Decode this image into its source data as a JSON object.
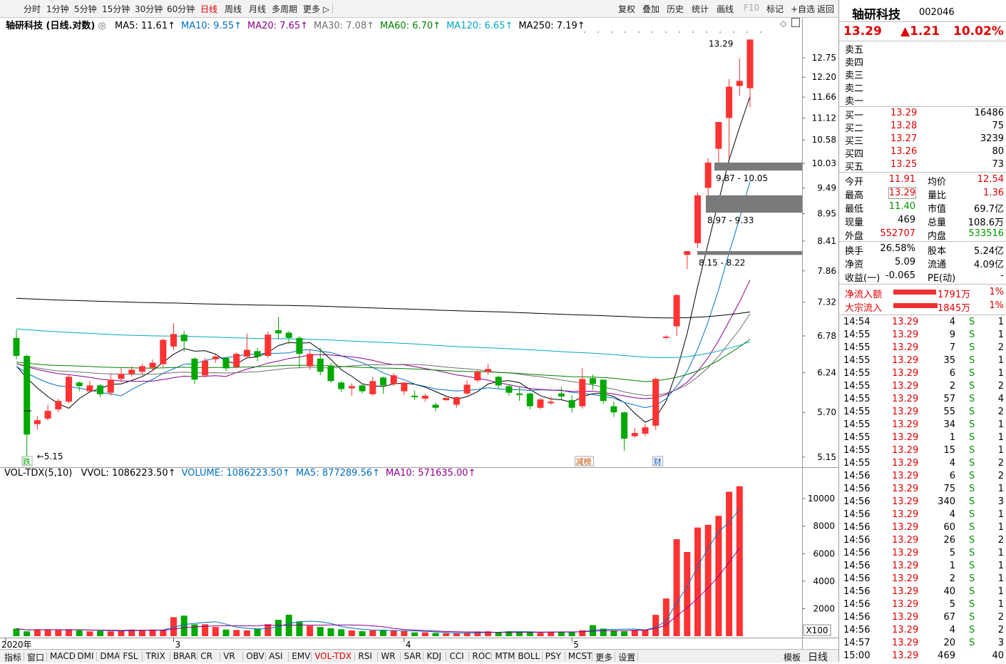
{
  "toolbar": {
    "periods": [
      "分时",
      "1分钟",
      "5分钟",
      "15分钟",
      "30分钟",
      "60分钟",
      "日线",
      "周线",
      "月线",
      "多周期",
      "更多 ▷"
    ],
    "active_period": "日线",
    "actions": [
      "复权",
      "叠加",
      "历史",
      "统计",
      "画线",
      "F10",
      "标记",
      "+自选",
      "返回"
    ]
  },
  "legend": {
    "title": "轴研科技 (日线.对数)",
    "items": [
      {
        "label": "MA5: 11.61↑",
        "color": "#000000"
      },
      {
        "label": "MA10: 9.55↑",
        "color": "#0070c0"
      },
      {
        "label": "MA20: 7.65↑",
        "color": "#8b008b"
      },
      {
        "label": "MA30: 7.08↑",
        "color": "#707070"
      },
      {
        "label": "MA60: 6.70↑",
        "color": "#008000"
      },
      {
        "label": "MA120: 6.65↑",
        "color": "#00a8c0"
      },
      {
        "label": "MA250: 7.19↑",
        "color": "#000000"
      }
    ]
  },
  "volume_legend": {
    "title": "VOL-TDX(5,10)",
    "items": [
      {
        "label": "VVOL: 1086223.50↑",
        "color": "#000000"
      },
      {
        "label": "VOLUME: 1086223.50↑",
        "color": "#0070c0"
      },
      {
        "label": "MA5: 877289.56↑",
        "color": "#0070c0"
      },
      {
        "label": "MA10: 571635.00↑",
        "color": "#8b008b"
      }
    ]
  },
  "annotations": {
    "high_label": "13.29",
    "low_label": "5.15",
    "gaps": [
      {
        "label": "9.87 - 10.05",
        "low": 9.87,
        "high": 10.05
      },
      {
        "label": "8.97 - 9.33",
        "low": 8.97,
        "high": 9.33
      },
      {
        "label": "8.15 - 8.22",
        "low": 8.15,
        "high": 8.22
      }
    ],
    "markers": [
      {
        "label": "跌",
        "day": 0
      },
      {
        "label": "财",
        "day": 41
      },
      {
        "label": "减榜",
        "day": 48
      }
    ]
  },
  "chart_data": [
    {
      "type": "candlestick",
      "title": "轴研科技 (日线.对数)",
      "scale": "log",
      "ylim": [
        5.05,
        13.45
      ],
      "yticks": [
        5.15,
        5.7,
        6.24,
        6.78,
        7.32,
        7.86,
        8.41,
        8.95,
        9.49,
        10.03,
        10.58,
        11.12,
        11.66,
        12.2,
        12.75
      ],
      "x_month_labels": [
        {
          "label": "2020年",
          "day": 0
        },
        {
          "label": "3",
          "day": 15
        },
        {
          "label": "4",
          "day": 37
        },
        {
          "label": "5",
          "day": 53
        }
      ],
      "candles": [
        [
          6.75,
          6.48,
          6.88,
          6.43
        ],
        [
          6.48,
          5.42,
          6.5,
          5.15
        ],
        [
          5.55,
          5.6,
          5.65,
          5.48
        ],
        [
          5.62,
          5.72,
          5.8,
          5.6
        ],
        [
          5.74,
          5.85,
          5.88,
          5.7
        ],
        [
          5.84,
          6.18,
          6.21,
          5.82
        ],
        [
          6.1,
          6.05,
          6.12,
          5.98
        ],
        [
          5.98,
          6.06,
          6.12,
          5.96
        ],
        [
          6.06,
          5.94,
          6.08,
          5.9
        ],
        [
          5.96,
          6.14,
          6.22,
          5.92
        ],
        [
          6.15,
          6.22,
          6.3,
          6.1
        ],
        [
          6.22,
          6.28,
          6.33,
          6.18
        ],
        [
          6.25,
          6.33,
          6.37,
          6.2
        ],
        [
          6.31,
          6.38,
          6.43,
          6.26
        ],
        [
          6.36,
          6.72,
          6.74,
          6.32
        ],
        [
          6.62,
          6.81,
          6.98,
          6.56
        ],
        [
          6.8,
          6.7,
          6.86,
          6.54
        ],
        [
          6.44,
          6.14,
          6.46,
          6.08
        ],
        [
          6.2,
          6.41,
          6.45,
          6.17
        ],
        [
          6.43,
          6.47,
          6.5,
          6.38
        ],
        [
          6.45,
          6.3,
          6.47,
          6.26
        ],
        [
          6.32,
          6.51,
          6.53,
          6.3
        ],
        [
          6.47,
          6.57,
          6.82,
          6.44
        ],
        [
          6.55,
          6.47,
          6.6,
          6.4
        ],
        [
          6.48,
          6.8,
          6.85,
          6.45
        ],
        [
          6.87,
          6.82,
          7.08,
          6.73
        ],
        [
          6.83,
          6.75,
          6.86,
          6.66
        ],
        [
          6.75,
          6.51,
          6.78,
          6.3
        ],
        [
          6.33,
          6.51,
          6.58,
          6.28
        ],
        [
          6.44,
          6.25,
          6.6,
          6.2
        ],
        [
          6.33,
          6.12,
          6.38,
          6.1
        ],
        [
          6.1,
          6.01,
          6.12,
          5.97
        ],
        [
          6.02,
          6.05,
          6.09,
          5.92
        ],
        [
          6.06,
          5.98,
          6.09,
          5.95
        ],
        [
          5.94,
          6.12,
          6.18,
          5.92
        ],
        [
          6.17,
          6.06,
          6.18,
          5.95
        ],
        [
          6.08,
          6.2,
          6.23,
          6.05
        ],
        [
          5.98,
          6.1,
          6.1,
          5.93
        ],
        [
          5.92,
          5.9,
          5.99,
          5.86
        ],
        [
          5.88,
          5.92,
          5.95,
          5.84
        ],
        [
          5.8,
          5.76,
          5.83,
          5.71
        ],
        [
          5.86,
          5.89,
          5.9,
          5.85
        ],
        [
          5.8,
          5.9,
          5.91,
          5.76
        ],
        [
          5.95,
          6.07,
          6.13,
          5.93
        ],
        [
          6.13,
          6.25,
          6.27,
          6.1
        ],
        [
          6.25,
          6.29,
          6.36,
          6.21
        ],
        [
          6.18,
          6.06,
          6.2,
          6.02
        ],
        [
          6.05,
          5.96,
          6.08,
          5.92
        ],
        [
          5.95,
          5.93,
          6.04,
          5.85
        ],
        [
          5.95,
          5.78,
          5.96,
          5.74
        ],
        [
          5.76,
          5.87,
          5.89,
          5.74
        ],
        [
          5.82,
          5.84,
          5.91,
          5.8
        ],
        [
          5.95,
          5.91,
          6.04,
          5.87
        ],
        [
          5.86,
          5.76,
          5.93,
          5.7
        ],
        [
          5.78,
          6.15,
          6.3,
          5.75
        ],
        [
          6.16,
          6.08,
          6.21,
          6.0
        ],
        [
          6.14,
          5.85,
          6.14,
          5.81
        ],
        [
          5.78,
          5.7,
          5.84,
          5.64
        ],
        [
          5.7,
          5.37,
          5.71,
          5.22
        ],
        [
          5.4,
          5.44,
          5.5,
          5.38
        ],
        [
          5.43,
          5.51,
          5.55,
          5.4
        ],
        [
          5.53,
          6.15,
          6.17,
          5.48
        ],
        [
          6.75,
          6.77,
          6.79,
          6.73
        ],
        [
          6.93,
          7.44,
          7.45,
          6.78
        ],
        [
          8.15,
          8.22,
          8.22,
          7.89
        ],
        [
          8.37,
          9.33,
          9.39,
          8.28
        ],
        [
          9.49,
          10.05,
          10.15,
          9.31
        ],
        [
          10.37,
          11.02,
          11.02,
          9.96
        ],
        [
          11.12,
          11.94,
          12.15,
          10.14
        ],
        [
          11.96,
          12.1,
          12.73,
          11.7
        ],
        [
          11.9,
          13.29,
          13.29,
          11.4
        ]
      ],
      "ma_series": [
        {
          "name": "MA5",
          "color": "#000000"
        },
        {
          "name": "MA10",
          "color": "#0070c0"
        },
        {
          "name": "MA20",
          "color": "#8b008b"
        },
        {
          "name": "MA30",
          "color": "#707070"
        },
        {
          "name": "MA60",
          "color": "#008000"
        },
        {
          "name": "MA120",
          "color": "#00a8c0"
        },
        {
          "name": "MA250",
          "color": "#000000"
        }
      ]
    },
    {
      "type": "bar",
      "title": "VOL-TDX(5,10)",
      "ylim": [
        0,
        11200
      ],
      "yticks": [
        2000,
        4000,
        6000,
        8000,
        10000
      ],
      "unit_label": "X100",
      "values": [
        550,
        350,
        500,
        480,
        450,
        500,
        430,
        350,
        380,
        350,
        420,
        480,
        460,
        480,
        430,
        1380,
        1490,
        860,
        860,
        670,
        480,
        450,
        420,
        560,
        870,
        1190,
        1560,
        1070,
        760,
        670,
        580,
        500,
        420,
        360,
        420,
        470,
        400,
        370,
        270,
        280,
        230,
        220,
        200,
        260,
        340,
        350,
        280,
        360,
        320,
        280,
        250,
        320,
        330,
        300,
        430,
        800,
        550,
        420,
        350,
        460,
        480,
        1550,
        2740,
        7050,
        6120,
        7900,
        8100,
        8750,
        10500,
        10900
      ]
    }
  ],
  "panel": {
    "name": "轴研科技",
    "code": "002046",
    "price": "13.29",
    "change": "▲1.21",
    "change_pct": "10.02%",
    "asks": [
      {
        "label": "卖五",
        "price": "",
        "vol": ""
      },
      {
        "label": "卖四",
        "price": "",
        "vol": ""
      },
      {
        "label": "卖三",
        "price": "",
        "vol": ""
      },
      {
        "label": "卖二",
        "price": "",
        "vol": ""
      },
      {
        "label": "卖一",
        "price": "",
        "vol": ""
      }
    ],
    "bids": [
      {
        "label": "买一",
        "price": "13.29",
        "vol": "16486"
      },
      {
        "label": "买二",
        "price": "13.28",
        "vol": "75"
      },
      {
        "label": "买三",
        "price": "13.27",
        "vol": "3239"
      },
      {
        "label": "买四",
        "price": "13.26",
        "vol": "80"
      },
      {
        "label": "买五",
        "price": "13.25",
        "vol": "73"
      }
    ],
    "stats": [
      {
        "l1": "今开",
        "v1": "11.91",
        "c1": "red",
        "l2": "均价",
        "v2": "12.54",
        "c2": "red"
      },
      {
        "l1": "最高",
        "v1": "13.29",
        "c1": "red",
        "l2": "量比",
        "v2": "1.36",
        "c2": "red"
      },
      {
        "l1": "最低",
        "v1": "11.40",
        "c1": "green",
        "l2": "市值",
        "v2": "69.7亿",
        "c2": "black"
      },
      {
        "l1": "现量",
        "v1": "469",
        "c1": "black",
        "l2": "总量",
        "v2": "108.6万",
        "c2": "black"
      },
      {
        "l1": "外盘",
        "v1": "552707",
        "c1": "red",
        "l2": "内盘",
        "v2": "533516",
        "c2": "green"
      }
    ],
    "stats2": [
      {
        "l1": "换手",
        "v1": "26.58%",
        "l2": "股本",
        "v2": "5.24亿"
      },
      {
        "l1": "净资",
        "v1": "5.09",
        "l2": "流通",
        "v2": "4.09亿"
      },
      {
        "l1": "收益(一)",
        "v1": "-0.065",
        "l2": "PE(动)",
        "v2": "-"
      }
    ],
    "flows": [
      {
        "label": "净流入额",
        "value": "1791万",
        "pct": "1%",
        "fill": 0.6
      },
      {
        "label": "大宗流入",
        "value": "1845万",
        "pct": "1%",
        "fill": 0.62
      }
    ],
    "ticks": [
      [
        "14:54",
        "13.29",
        "4",
        "S",
        "1"
      ],
      [
        "14:55",
        "13.29",
        "9",
        "S",
        "1"
      ],
      [
        "14:55",
        "13.29",
        "7",
        "S",
        "2"
      ],
      [
        "14:55",
        "13.29",
        "35",
        "S",
        "1"
      ],
      [
        "14:55",
        "13.29",
        "6",
        "S",
        "1"
      ],
      [
        "14:55",
        "13.29",
        "2",
        "S",
        "2"
      ],
      [
        "14:55",
        "13.29",
        "57",
        "S",
        "4"
      ],
      [
        "14:55",
        "13.29",
        "55",
        "S",
        "2"
      ],
      [
        "14:55",
        "13.29",
        "34",
        "S",
        "1"
      ],
      [
        "14:55",
        "13.29",
        "1",
        "S",
        "1"
      ],
      [
        "14:55",
        "13.29",
        "15",
        "S",
        "1"
      ],
      [
        "14:55",
        "13.29",
        "4",
        "S",
        "2"
      ],
      [
        "14:56",
        "13.29",
        "6",
        "S",
        "2"
      ],
      [
        "14:56",
        "13.29",
        "75",
        "S",
        "1"
      ],
      [
        "14:56",
        "13.29",
        "340",
        "S",
        "3"
      ],
      [
        "14:56",
        "13.29",
        "4",
        "S",
        "1"
      ],
      [
        "14:56",
        "13.29",
        "60",
        "S",
        "1"
      ],
      [
        "14:56",
        "13.29",
        "26",
        "S",
        "2"
      ],
      [
        "14:56",
        "13.29",
        "5",
        "S",
        "1"
      ],
      [
        "14:56",
        "13.29",
        "1",
        "S",
        "1"
      ],
      [
        "14:56",
        "13.29",
        "2",
        "S",
        "1"
      ],
      [
        "14:56",
        "13.29",
        "40",
        "S",
        "1"
      ],
      [
        "14:56",
        "13.29",
        "5",
        "S",
        "1"
      ],
      [
        "14:56",
        "13.29",
        "67",
        "S",
        "2"
      ],
      [
        "14:56",
        "13.29",
        "4",
        "S",
        "2"
      ],
      [
        "14:57",
        "13.29",
        "20",
        "S",
        "3"
      ],
      [
        "15:00",
        "13.29",
        "469",
        "",
        "40"
      ]
    ]
  },
  "bottom_tabs": {
    "items": [
      "指标",
      "窗口",
      "MACD",
      "DMI",
      "DMA",
      "FSL",
      "TRIX",
      "BRAR",
      "CR",
      "VR",
      "OBV",
      "ASI",
      "EMV",
      "VOL-TDX",
      "RSI",
      "WR",
      "SAR",
      "KDJ",
      "CCI",
      "ROC",
      "MTM",
      "BOLL",
      "PSY",
      "MCST",
      "更多",
      "设置"
    ],
    "active": "VOL-TDX",
    "right": [
      "模板",
      "日线"
    ]
  }
}
